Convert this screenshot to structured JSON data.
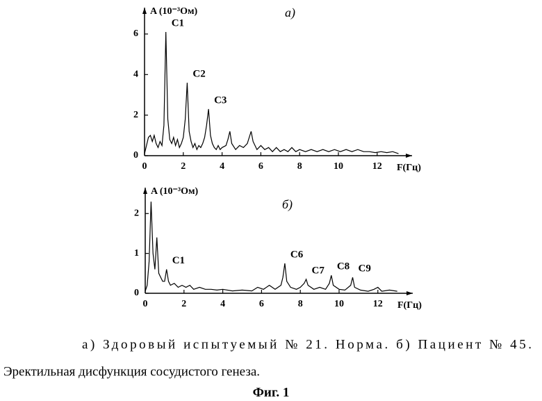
{
  "chart_data": [
    {
      "type": "line",
      "panel_label": "а)",
      "y_label": "A (10⁻³Ом)",
      "x_label": "F(Гц)",
      "color": "#000000",
      "xlim": [
        0,
        13.8
      ],
      "ylim": [
        0,
        7.3
      ],
      "xticks": [
        0,
        2,
        4,
        6,
        8,
        10,
        12
      ],
      "yticks": [
        0,
        2,
        4,
        6
      ],
      "x": [
        0,
        0.1,
        0.2,
        0.3,
        0.4,
        0.5,
        0.6,
        0.7,
        0.8,
        0.9,
        1.0,
        1.1,
        1.2,
        1.3,
        1.4,
        1.5,
        1.6,
        1.7,
        1.8,
        1.9,
        2.0,
        2.1,
        2.2,
        2.3,
        2.4,
        2.5,
        2.6,
        2.7,
        2.8,
        2.9,
        3.0,
        3.1,
        3.2,
        3.3,
        3.4,
        3.5,
        3.6,
        3.7,
        3.8,
        3.9,
        4.0,
        4.2,
        4.3,
        4.4,
        4.5,
        4.7,
        4.9,
        5.1,
        5.3,
        5.5,
        5.6,
        5.8,
        6.0,
        6.2,
        6.4,
        6.6,
        6.8,
        7.0,
        7.2,
        7.4,
        7.6,
        7.8,
        8.0,
        8.3,
        8.6,
        8.9,
        9.2,
        9.5,
        9.8,
        10.1,
        10.4,
        10.7,
        11.0,
        11.3,
        11.6,
        11.9,
        12.2,
        12.5,
        12.8,
        13.1
      ],
      "values": [
        0.1,
        0.5,
        0.9,
        1.0,
        0.7,
        1.0,
        0.6,
        0.4,
        0.7,
        0.5,
        1.5,
        6.1,
        1.8,
        0.8,
        0.6,
        0.9,
        0.5,
        0.8,
        0.4,
        0.6,
        0.9,
        1.8,
        3.6,
        1.2,
        0.7,
        0.4,
        0.6,
        0.3,
        0.5,
        0.4,
        0.6,
        0.9,
        1.5,
        2.3,
        1.0,
        0.6,
        0.4,
        0.3,
        0.5,
        0.3,
        0.4,
        0.5,
        0.8,
        1.2,
        0.6,
        0.3,
        0.5,
        0.4,
        0.6,
        1.2,
        0.7,
        0.3,
        0.5,
        0.3,
        0.4,
        0.2,
        0.4,
        0.2,
        0.3,
        0.2,
        0.4,
        0.2,
        0.3,
        0.2,
        0.3,
        0.2,
        0.3,
        0.2,
        0.3,
        0.2,
        0.3,
        0.2,
        0.3,
        0.2,
        0.2,
        0.15,
        0.2,
        0.15,
        0.2,
        0.1
      ],
      "annotations": [
        {
          "text": "C1",
          "x": 1.1,
          "y": 6.1
        },
        {
          "text": "C2",
          "x": 2.2,
          "y": 3.6
        },
        {
          "text": "C3",
          "x": 3.3,
          "y": 2.3
        }
      ]
    },
    {
      "type": "line",
      "panel_label": "б)",
      "y_label": "A (10⁻³Ом)",
      "x_label": "F(Гц)",
      "color": "#000000",
      "xlim": [
        0,
        13.8
      ],
      "ylim": [
        0,
        2.65
      ],
      "xticks": [
        0,
        2,
        4,
        6,
        8,
        10,
        12
      ],
      "yticks": [
        0,
        1,
        2
      ],
      "x": [
        0,
        0.1,
        0.2,
        0.3,
        0.4,
        0.5,
        0.6,
        0.7,
        0.8,
        0.9,
        1.0,
        1.1,
        1.2,
        1.3,
        1.5,
        1.7,
        1.9,
        2.1,
        2.3,
        2.5,
        2.8,
        3.1,
        3.4,
        3.7,
        4.0,
        4.5,
        5.0,
        5.5,
        5.8,
        6.1,
        6.4,
        6.7,
        7.0,
        7.1,
        7.2,
        7.3,
        7.5,
        7.8,
        8.0,
        8.2,
        8.3,
        8.4,
        8.7,
        9.0,
        9.3,
        9.5,
        9.6,
        9.7,
        10.0,
        10.3,
        10.6,
        10.7,
        10.8,
        11.1,
        11.5,
        11.8,
        12.0,
        12.2,
        12.6,
        13.0
      ],
      "values": [
        0.05,
        0.2,
        0.8,
        2.3,
        1.0,
        0.6,
        1.4,
        0.5,
        0.4,
        0.3,
        0.3,
        0.6,
        0.3,
        0.2,
        0.25,
        0.15,
        0.2,
        0.15,
        0.2,
        0.1,
        0.15,
        0.1,
        0.1,
        0.08,
        0.1,
        0.06,
        0.08,
        0.06,
        0.15,
        0.1,
        0.2,
        0.1,
        0.2,
        0.4,
        0.75,
        0.3,
        0.15,
        0.1,
        0.15,
        0.25,
        0.35,
        0.2,
        0.1,
        0.15,
        0.1,
        0.25,
        0.45,
        0.2,
        0.1,
        0.08,
        0.2,
        0.4,
        0.15,
        0.08,
        0.05,
        0.1,
        0.15,
        0.05,
        0.08,
        0.05
      ],
      "annotations": [
        {
          "text": "C1",
          "x": 1.1,
          "y": 0.6
        },
        {
          "text": "C6",
          "x": 7.2,
          "y": 0.75
        },
        {
          "text": "C7",
          "x": 8.3,
          "y": 0.35
        },
        {
          "text": "C8",
          "x": 9.6,
          "y": 0.45
        },
        {
          "text": "C9",
          "x": 10.7,
          "y": 0.4
        }
      ]
    }
  ],
  "caption": [
    "а) Здоровый испытуемый № 21. Норма. б) Пациент № 45.",
    "Эректильная дисфункция сосудистого генеза."
  ],
  "figure_label": "Фиг. 1"
}
